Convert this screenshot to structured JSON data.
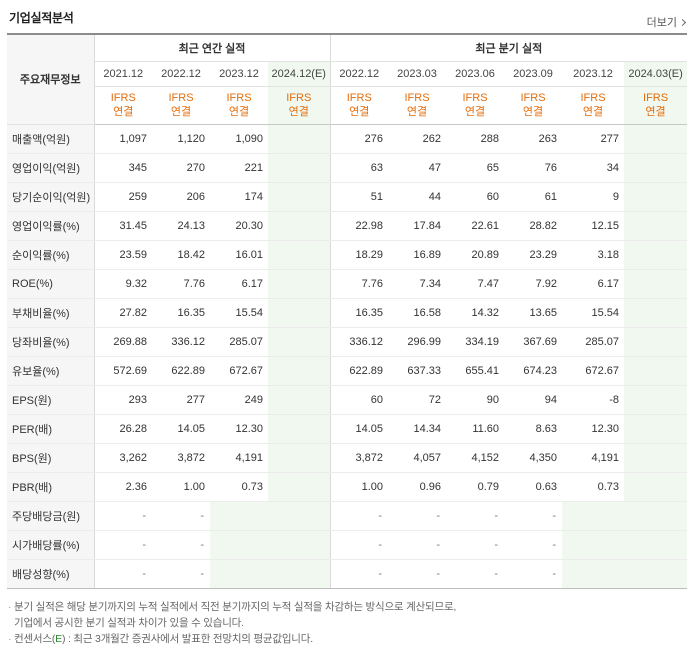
{
  "title": "기업실적분석",
  "more_label": "더보기",
  "header": {
    "row_head": "주요재무정보",
    "annual_label": "최근 연간 실적",
    "quarter_label": "최근 분기 실적",
    "annual_periods": [
      "2021.12",
      "2022.12",
      "2023.12",
      "2024.12(E)"
    ],
    "quarter_periods": [
      "2022.12",
      "2023.03",
      "2023.06",
      "2023.09",
      "2023.12",
      "2024.03(E)"
    ],
    "basis_top": "IFRS",
    "basis_bottom": "연결"
  },
  "rows": [
    {
      "label": "매출액(억원)",
      "annual": [
        "1,097",
        "1,120",
        "1,090",
        ""
      ],
      "quarter": [
        "276",
        "262",
        "288",
        "263",
        "277",
        ""
      ]
    },
    {
      "label": "영업이익(억원)",
      "annual": [
        "345",
        "270",
        "221",
        ""
      ],
      "quarter": [
        "63",
        "47",
        "65",
        "76",
        "34",
        ""
      ]
    },
    {
      "label": "당기순이익(억원)",
      "annual": [
        "259",
        "206",
        "174",
        ""
      ],
      "quarter": [
        "51",
        "44",
        "60",
        "61",
        "9",
        ""
      ]
    },
    {
      "label": "영업이익률(%)",
      "annual": [
        "31.45",
        "24.13",
        "20.30",
        ""
      ],
      "quarter": [
        "22.98",
        "17.84",
        "22.61",
        "28.82",
        "12.15",
        ""
      ]
    },
    {
      "label": "순이익률(%)",
      "annual": [
        "23.59",
        "18.42",
        "16.01",
        ""
      ],
      "quarter": [
        "18.29",
        "16.89",
        "20.89",
        "23.29",
        "3.18",
        ""
      ]
    },
    {
      "label": "ROE(%)",
      "annual": [
        "9.32",
        "7.76",
        "6.17",
        ""
      ],
      "quarter": [
        "7.76",
        "7.34",
        "7.47",
        "7.92",
        "6.17",
        ""
      ]
    },
    {
      "label": "부채비율(%)",
      "annual": [
        "27.82",
        "16.35",
        "15.54",
        ""
      ],
      "quarter": [
        "16.35",
        "16.58",
        "14.32",
        "13.65",
        "15.54",
        ""
      ]
    },
    {
      "label": "당좌비율(%)",
      "annual": [
        "269.88",
        "336.12",
        "285.07",
        ""
      ],
      "quarter": [
        "336.12",
        "296.99",
        "334.19",
        "367.69",
        "285.07",
        ""
      ]
    },
    {
      "label": "유보율(%)",
      "annual": [
        "572.69",
        "622.89",
        "672.67",
        ""
      ],
      "quarter": [
        "622.89",
        "637.33",
        "655.41",
        "674.23",
        "672.67",
        ""
      ]
    },
    {
      "label": "EPS(원)",
      "annual": [
        "293",
        "277",
        "249",
        ""
      ],
      "quarter": [
        "60",
        "72",
        "90",
        "94",
        "-8",
        ""
      ]
    },
    {
      "label": "PER(배)",
      "annual": [
        "26.28",
        "14.05",
        "12.30",
        ""
      ],
      "quarter": [
        "14.05",
        "14.34",
        "11.60",
        "8.63",
        "12.30",
        ""
      ]
    },
    {
      "label": "BPS(원)",
      "annual": [
        "3,262",
        "3,872",
        "4,191",
        ""
      ],
      "quarter": [
        "3,872",
        "4,057",
        "4,152",
        "4,350",
        "4,191",
        ""
      ]
    },
    {
      "label": "PBR(배)",
      "annual": [
        "2.36",
        "1.00",
        "0.73",
        ""
      ],
      "quarter": [
        "1.00",
        "0.96",
        "0.79",
        "0.63",
        "0.73",
        ""
      ]
    },
    {
      "label": "주당배당금(원)",
      "annual": [
        "-",
        "-",
        "",
        ""
      ],
      "quarter": [
        "-",
        "-",
        "-",
        "-",
        "",
        ""
      ]
    },
    {
      "label": "시가배당률(%)",
      "annual": [
        "-",
        "-",
        "",
        ""
      ],
      "quarter": [
        "-",
        "-",
        "-",
        "-",
        "",
        ""
      ]
    },
    {
      "label": "배당성향(%)",
      "annual": [
        "-",
        "-",
        "",
        ""
      ],
      "quarter": [
        "-",
        "-",
        "-",
        "-",
        "",
        ""
      ]
    }
  ],
  "notes": {
    "line1": "분기 실적은 해당 분기까지의 누적 실적에서 직전 분기까지의 누적 실적을 차감하는 방식으로 계산되므로,",
    "line2": "기업에서 공시한 분기 실적과 차이가 있을 수 있습니다.",
    "line3_prefix": "컨센서스(",
    "line3_e": "E",
    "line3_suffix": ") : 최근 3개월간 증권사에서 발표한 전망치의 평균값입니다."
  },
  "colors": {
    "basis": "#e46c0a",
    "estimate_bg": "#f1f8ef",
    "negative": "#e52929"
  }
}
